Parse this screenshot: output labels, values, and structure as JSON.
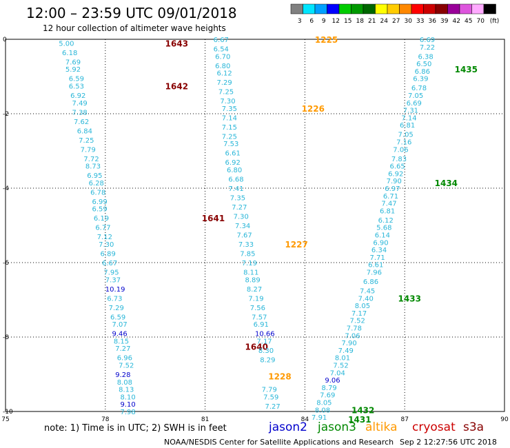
{
  "header": {
    "title": "12:00 – 23:59 UTC 09/01/2018",
    "subtitle": "12 hour collection of altimeter wave heights"
  },
  "colorbar": {
    "unit_label": "(ft)",
    "levels": [
      {
        "label": "3",
        "color": "#808080"
      },
      {
        "label": "6",
        "color": "#00e5ff"
      },
      {
        "label": "9",
        "color": "#00a0ff"
      },
      {
        "label": "12",
        "color": "#0000ff"
      },
      {
        "label": "15",
        "color": "#00cc00"
      },
      {
        "label": "18",
        "color": "#009900"
      },
      {
        "label": "21",
        "color": "#006600"
      },
      {
        "label": "24",
        "color": "#ffff00"
      },
      {
        "label": "27",
        "color": "#ffcc00"
      },
      {
        "label": "30",
        "color": "#ff8800"
      },
      {
        "label": "33",
        "color": "#ff0000"
      },
      {
        "label": "36",
        "color": "#cc0000"
      },
      {
        "label": "39",
        "color": "#880000"
      },
      {
        "label": "42",
        "color": "#990099"
      },
      {
        "label": "45",
        "color": "#dd55dd"
      },
      {
        "label": "70",
        "color": "#ffaaff"
      },
      {
        "label": "",
        "color": "#000000"
      }
    ]
  },
  "axes": {
    "x_ticks": [
      "75",
      "78",
      "81",
      "84",
      "87",
      "90"
    ],
    "y_ticks": [
      "0",
      "-2",
      "-4",
      "-6",
      "-8",
      "-10"
    ],
    "lon_range": [
      75,
      90
    ],
    "lat_range": [
      -10,
      0
    ]
  },
  "colors": {
    "swh_low": "#29b6d8",
    "swh_mid": "#0000cc",
    "jason2": "#0000cc",
    "jason3": "#008800",
    "altika": "#ff9900",
    "cryosat": "#cc0000",
    "s3a": "#880000"
  },
  "tracks": [
    {
      "label": "1643",
      "label_color": "#880000",
      "label_lon": 79.8,
      "label_lat": -0.1,
      "points": [
        {
          "v": "5.00",
          "lon": 76.6,
          "lat": -0.1
        },
        {
          "v": "6.18",
          "lon": 76.7,
          "lat": -0.35
        },
        {
          "v": "7.69",
          "lon": 76.8,
          "lat": -0.6
        },
        {
          "v": "5.92",
          "lon": 76.8,
          "lat": -0.8
        },
        {
          "v": "6.59",
          "lon": 76.9,
          "lat": -1.05
        },
        {
          "v": "6.53",
          "lon": 76.9,
          "lat": -1.25
        },
        {
          "v": "6.92",
          "lon": 76.95,
          "lat": -1.5
        },
        {
          "v": "7.49",
          "lon": 77.0,
          "lat": -1.7
        },
        {
          "v": "7.38",
          "lon": 77.0,
          "lat": -1.95
        },
        {
          "v": "7.62",
          "lon": 77.05,
          "lat": -2.2
        },
        {
          "v": "6.84",
          "lon": 77.15,
          "lat": -2.45
        },
        {
          "v": "7.25",
          "lon": 77.2,
          "lat": -2.7
        },
        {
          "v": "7.79",
          "lon": 77.25,
          "lat": -2.95
        },
        {
          "v": "7.72",
          "lon": 77.35,
          "lat": -3.2
        },
        {
          "v": "8.73",
          "lon": 77.4,
          "lat": -3.4
        },
        {
          "v": "6.95",
          "lon": 77.45,
          "lat": -3.65
        },
        {
          "v": "6.28",
          "lon": 77.5,
          "lat": -3.85
        }
      ]
    },
    {
      "label": "1642",
      "label_color": "#880000",
      "label_lon": 79.8,
      "label_lat": -1.25,
      "points": []
    },
    {
      "label": "1641",
      "label_color": "#880000",
      "label_lon": 80.9,
      "label_lat": -4.8,
      "points": [
        {
          "v": "6.78",
          "lon": 77.55,
          "lat": -4.1
        },
        {
          "v": "6.99",
          "lon": 77.6,
          "lat": -4.35
        },
        {
          "v": "6.59",
          "lon": 77.6,
          "lat": -4.55
        },
        {
          "v": "6.19",
          "lon": 77.65,
          "lat": -4.8
        },
        {
          "v": "6.77",
          "lon": 77.7,
          "lat": -5.05
        },
        {
          "v": "7.12",
          "lon": 77.75,
          "lat": -5.3
        },
        {
          "v": "7.30",
          "lon": 77.8,
          "lat": -5.5
        },
        {
          "v": "6.89",
          "lon": 77.85,
          "lat": -5.75
        },
        {
          "v": "6.67",
          "lon": 77.9,
          "lat": -6.0
        },
        {
          "v": "7.95",
          "lon": 77.95,
          "lat": -6.25
        },
        {
          "v": "7.37",
          "lon": 78.0,
          "lat": -6.45
        },
        {
          "v": "6.73",
          "lon": 78.05,
          "lat": -6.95
        },
        {
          "v": "7.29",
          "lon": 78.1,
          "lat": -7.2
        },
        {
          "v": "6.59",
          "lon": 78.15,
          "lat": -7.45
        },
        {
          "v": "7.07",
          "lon": 78.2,
          "lat": -7.65
        }
      ]
    },
    {
      "label": "1640",
      "label_color": "#880000",
      "label_lon": 82.2,
      "label_lat": -8.25,
      "points": [
        {
          "v": "10.19",
          "lon": 78.0,
          "lat": -6.7,
          "mid": true
        },
        {
          "v": "9.46",
          "lon": 78.2,
          "lat": -7.9,
          "mid": true
        },
        {
          "v": "8.15",
          "lon": 78.25,
          "lat": -8.1
        },
        {
          "v": "7.27",
          "lon": 78.3,
          "lat": -8.3
        },
        {
          "v": "6.96",
          "lon": 78.35,
          "lat": -8.55
        },
        {
          "v": "7.52",
          "lon": 78.4,
          "lat": -8.75
        },
        {
          "v": "9.28",
          "lon": 78.3,
          "lat": -9.0,
          "mid": true
        },
        {
          "v": "8.08",
          "lon": 78.35,
          "lat": -9.2
        },
        {
          "v": "8.13",
          "lon": 78.4,
          "lat": -9.4
        },
        {
          "v": "8.10",
          "lon": 78.45,
          "lat": -9.6
        },
        {
          "v": "9.10",
          "lon": 78.45,
          "lat": -9.8,
          "mid": true
        },
        {
          "v": "7.98",
          "lon": 78.45,
          "lat": -10.0
        }
      ]
    },
    {
      "label": "1225",
      "label_color": "#ff9900",
      "label_lon": 84.3,
      "label_lat": 0.0,
      "points": [
        {
          "v": "6.67",
          "lon": 81.25,
          "lat": 0.0
        },
        {
          "v": "6.54",
          "lon": 81.25,
          "lat": -0.25
        },
        {
          "v": "6.70",
          "lon": 81.3,
          "lat": -0.45
        },
        {
          "v": "6.80",
          "lon": 81.3,
          "lat": -0.7
        },
        {
          "v": "6.12",
          "lon": 81.35,
          "lat": -0.9
        },
        {
          "v": "7.29",
          "lon": 81.35,
          "lat": -1.15
        },
        {
          "v": "7.25",
          "lon": 81.4,
          "lat": -1.4
        },
        {
          "v": "7.30",
          "lon": 81.45,
          "lat": -1.65
        },
        {
          "v": "7.35",
          "lon": 81.5,
          "lat": -1.85
        }
      ]
    },
    {
      "label": "1226",
      "label_color": "#ff9900",
      "label_lon": 83.9,
      "label_lat": -1.85,
      "points": [
        {
          "v": "7.14",
          "lon": 81.5,
          "lat": -2.1
        },
        {
          "v": "7.15",
          "lon": 81.5,
          "lat": -2.35
        },
        {
          "v": "7.25",
          "lon": 81.5,
          "lat": -2.6
        },
        {
          "v": "7.53",
          "lon": 81.55,
          "lat": -2.8
        },
        {
          "v": "6.61",
          "lon": 81.6,
          "lat": -3.05
        },
        {
          "v": "6.92",
          "lon": 81.6,
          "lat": -3.3
        },
        {
          "v": "6.80",
          "lon": 81.65,
          "lat": -3.5
        },
        {
          "v": "6.68",
          "lon": 81.7,
          "lat": -3.75
        },
        {
          "v": "7.41",
          "lon": 81.7,
          "lat": -4.0
        },
        {
          "v": "7.35",
          "lon": 81.75,
          "lat": -4.25
        },
        {
          "v": "7.27",
          "lon": 81.8,
          "lat": -4.5
        },
        {
          "v": "7.30",
          "lon": 81.85,
          "lat": -4.75
        },
        {
          "v": "7.34",
          "lon": 81.9,
          "lat": -5.0
        },
        {
          "v": "7.67",
          "lon": 81.95,
          "lat": -5.25
        },
        {
          "v": "7.33",
          "lon": 82.0,
          "lat": -5.5
        }
      ]
    },
    {
      "label": "1227",
      "label_color": "#ff9900",
      "label_lon": 83.4,
      "label_lat": -5.5,
      "points": [
        {
          "v": "7.85",
          "lon": 82.05,
          "lat": -5.75
        },
        {
          "v": "7.19",
          "lon": 82.1,
          "lat": -6.0
        },
        {
          "v": "8.11",
          "lon": 82.15,
          "lat": -6.25
        },
        {
          "v": "8.89",
          "lon": 82.2,
          "lat": -6.45
        },
        {
          "v": "8.27",
          "lon": 82.25,
          "lat": -6.7
        },
        {
          "v": "7.19",
          "lon": 82.3,
          "lat": -6.95
        },
        {
          "v": "7.56",
          "lon": 82.35,
          "lat": -7.2
        },
        {
          "v": "7.57",
          "lon": 82.4,
          "lat": -7.45
        },
        {
          "v": "6.91",
          "lon": 82.45,
          "lat": -7.65
        },
        {
          "v": "10.66",
          "lon": 82.5,
          "lat": -7.9,
          "mid": true
        },
        {
          "v": "7.17",
          "lon": 82.55,
          "lat": -8.1
        },
        {
          "v": "8.30",
          "lon": 82.6,
          "lat": -8.35
        },
        {
          "v": "8.29",
          "lon": 82.65,
          "lat": -8.6
        }
      ]
    },
    {
      "label": "1228",
      "label_color": "#ff9900",
      "label_lon": 82.9,
      "label_lat": -9.05,
      "points": [
        {
          "v": "7.79",
          "lon": 82.7,
          "lat": -9.4
        },
        {
          "v": "7.59",
          "lon": 82.75,
          "lat": -9.6
        },
        {
          "v": "7.27",
          "lon": 82.8,
          "lat": -9.85
        }
      ]
    },
    {
      "label": "1435",
      "label_color": "#008800",
      "label_lon": 88.5,
      "label_lat": -0.8,
      "points": [
        {
          "v": "6.69",
          "lon": 87.45,
          "lat": 0.0
        },
        {
          "v": "7.22",
          "lon": 87.45,
          "lat": -0.2
        },
        {
          "v": "6.38",
          "lon": 87.4,
          "lat": -0.45
        },
        {
          "v": "6.50",
          "lon": 87.35,
          "lat": -0.65
        },
        {
          "v": "6.86",
          "lon": 87.3,
          "lat": -0.85
        },
        {
          "v": "6.39",
          "lon": 87.25,
          "lat": -1.05
        },
        {
          "v": "6.78",
          "lon": 87.2,
          "lat": -1.3
        },
        {
          "v": "7.05",
          "lon": 87.1,
          "lat": -1.5
        },
        {
          "v": "6.69",
          "lon": 87.05,
          "lat": -1.7
        },
        {
          "v": "7.31",
          "lon": 86.95,
          "lat": -1.9
        },
        {
          "v": "7.14",
          "lon": 86.9,
          "lat": -2.1
        },
        {
          "v": "6.81",
          "lon": 86.85,
          "lat": -2.3
        },
        {
          "v": "7.05",
          "lon": 86.8,
          "lat": -2.55
        },
        {
          "v": "7.16",
          "lon": 86.75,
          "lat": -2.75
        },
        {
          "v": "7.06",
          "lon": 86.65,
          "lat": -2.95
        },
        {
          "v": "7.83",
          "lon": 86.6,
          "lat": -3.2
        },
        {
          "v": "6.65",
          "lon": 86.55,
          "lat": -3.4
        },
        {
          "v": "6.92",
          "lon": 86.5,
          "lat": -3.6
        },
        {
          "v": "7.90",
          "lon": 86.45,
          "lat": -3.8
        }
      ]
    },
    {
      "label": "1434",
      "label_color": "#008800",
      "label_lon": 87.9,
      "label_lat": -3.85,
      "points": [
        {
          "v": "6.97",
          "lon": 86.4,
          "lat": -4.0
        },
        {
          "v": "6.71",
          "lon": 86.35,
          "lat": -4.2
        },
        {
          "v": "7.47",
          "lon": 86.3,
          "lat": -4.4
        },
        {
          "v": "6.81",
          "lon": 86.25,
          "lat": -4.6
        },
        {
          "v": "6.12",
          "lon": 86.2,
          "lat": -4.85
        },
        {
          "v": "5.68",
          "lon": 86.15,
          "lat": -5.05
        },
        {
          "v": "6.14",
          "lon": 86.1,
          "lat": -5.25
        },
        {
          "v": "6.90",
          "lon": 86.05,
          "lat": -5.45
        },
        {
          "v": "6.34",
          "lon": 86.0,
          "lat": -5.65
        },
        {
          "v": "7.71",
          "lon": 85.95,
          "lat": -5.85
        },
        {
          "v": "6.61",
          "lon": 85.9,
          "lat": -6.05
        },
        {
          "v": "7.96",
          "lon": 85.85,
          "lat": -6.25
        }
      ]
    },
    {
      "label": "1433",
      "label_color": "#008800",
      "label_lon": 86.8,
      "label_lat": -6.95,
      "points": [
        {
          "v": "6.86",
          "lon": 85.75,
          "lat": -6.5
        },
        {
          "v": "7.45",
          "lon": 85.65,
          "lat": -6.75
        },
        {
          "v": "7.40",
          "lon": 85.6,
          "lat": -6.95
        },
        {
          "v": "8.05",
          "lon": 85.5,
          "lat": -7.15
        },
        {
          "v": "7.17",
          "lon": 85.4,
          "lat": -7.35
        },
        {
          "v": "7.52",
          "lon": 85.35,
          "lat": -7.55
        },
        {
          "v": "7.78",
          "lon": 85.25,
          "lat": -7.75
        },
        {
          "v": "7.06",
          "lon": 85.2,
          "lat": -7.95
        },
        {
          "v": "7.90",
          "lon": 85.1,
          "lat": -8.15
        },
        {
          "v": "7.49",
          "lon": 85.0,
          "lat": -8.35
        },
        {
          "v": "8.01",
          "lon": 84.9,
          "lat": -8.55
        },
        {
          "v": "7.52",
          "lon": 84.85,
          "lat": -8.75
        },
        {
          "v": "7.04",
          "lon": 84.75,
          "lat": -8.95
        },
        {
          "v": "9.06",
          "lon": 84.6,
          "lat": -9.15,
          "mid": true
        },
        {
          "v": "8.79",
          "lon": 84.5,
          "lat": -9.35
        },
        {
          "v": "7.69",
          "lon": 84.45,
          "lat": -9.55
        },
        {
          "v": "8.05",
          "lon": 84.35,
          "lat": -9.75
        }
      ]
    },
    {
      "label": "1432",
      "label_color": "#008800",
      "label_lon": 85.4,
      "label_lat": -9.95,
      "points": [
        {
          "v": "8.08",
          "lon": 84.3,
          "lat": -9.95
        },
        {
          "v": "7.91",
          "lon": 84.2,
          "lat": -10.15
        }
      ]
    },
    {
      "label": "1431",
      "label_color": "#008800",
      "label_lon": 85.3,
      "label_lat": -10.2,
      "points": []
    }
  ],
  "footer": {
    "note": "note: 1) Time is in UTC; 2) SWH is in feet",
    "legend": [
      {
        "label": "jason2",
        "color": "#0000cc"
      },
      {
        "label": "jason3",
        "color": "#008800"
      },
      {
        "label": "altika",
        "color": "#ff9900"
      },
      {
        "label": "cryosat",
        "color": "#cc0000"
      },
      {
        "label": "s3a",
        "color": "#880000"
      }
    ],
    "credit": "NOAA/NESDIS Center for Satellite Applications and Research",
    "timestamp": "Sep  2 12:27:56 UTC 2018"
  }
}
